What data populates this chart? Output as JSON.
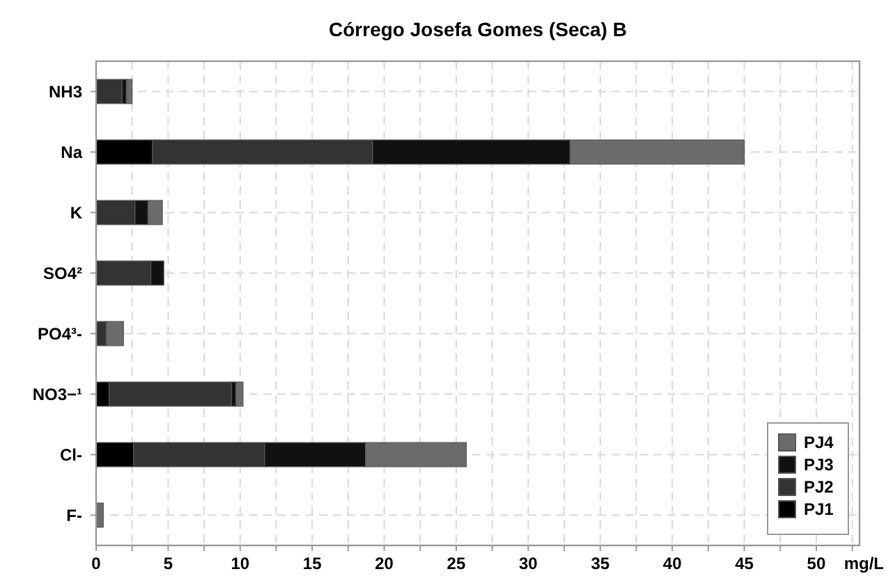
{
  "chart_data": {
    "type": "bar",
    "orientation": "horizontal",
    "stacked": true,
    "title": "Córrego Josefa Gomes (Seca) B",
    "xlabel": "mg/L",
    "categories": [
      "NH3",
      "Na",
      "K",
      "SO4²",
      "PO4³-",
      "NO3−¹",
      "Cl-",
      "F-"
    ],
    "series": [
      {
        "name": "PJ1",
        "color": "#000000",
        "values": [
          null,
          3.9,
          null,
          0,
          0,
          0.9,
          2.6,
          0
        ]
      },
      {
        "name": "PJ2",
        "color": "#333333",
        "values": [
          1.8,
          15.3,
          2.7,
          3.8,
          0.7,
          8.5,
          9.1,
          0
        ]
      },
      {
        "name": "PJ3",
        "color": "#111111",
        "values": [
          0.3,
          13.7,
          0.9,
          0.9,
          0,
          0.3,
          7.0,
          0
        ]
      },
      {
        "name": "PJ4",
        "color": "#6b6b6b",
        "values": [
          0.4,
          12.1,
          1.0,
          0,
          1.2,
          0.5,
          7.0,
          0.5
        ]
      }
    ],
    "xlim": [
      0,
      53
    ],
    "xticks": [
      0,
      {
        "value": 2.5,
        "label": null
      },
      5,
      {
        "value": 7.5,
        "label": null
      },
      10,
      {
        "value": 12.5,
        "label": null
      },
      15,
      {
        "value": 17.5,
        "label": null
      },
      20,
      {
        "value": 22.5,
        "label": null
      },
      25,
      {
        "value": 27.5,
        "label": null
      },
      30,
      {
        "value": 32.5,
        "label": null
      },
      35,
      {
        "value": 37.5,
        "label": null
      },
      40,
      {
        "value": 42.5,
        "label": null
      },
      45,
      {
        "value": 47.5,
        "label": null
      },
      50,
      {
        "value": 52.5,
        "label": null
      }
    ],
    "grid": true,
    "legend": "bottom right"
  }
}
